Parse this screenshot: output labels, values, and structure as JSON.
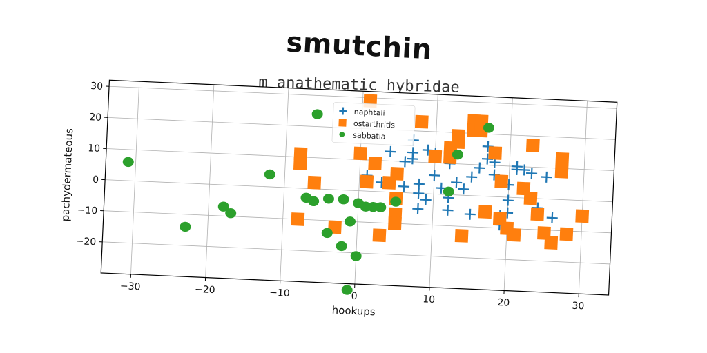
{
  "title": "smutchin",
  "subtitle": "m anathematic hybridae",
  "colors": {
    "naphtali": "#1f77b4",
    "ostarthritis": "#ff7f0e",
    "sabbatia": "#2ca02c",
    "grid": "#b0b0b0",
    "axes": "#000000"
  },
  "chart_data": {
    "type": "scatter",
    "title": "m anathematic hybridae",
    "xlabel": "hookups",
    "ylabel": "pachydermateous",
    "xlim": [
      -34,
      34
    ],
    "ylim": [
      -30,
      32
    ],
    "xticks": [
      -30,
      -20,
      -10,
      0,
      10,
      20,
      30
    ],
    "yticks": [
      -20,
      -10,
      0,
      10,
      20,
      30
    ],
    "grid": true,
    "legend_position": "top-center",
    "series": [
      {
        "name": "naphtali",
        "marker": "plus",
        "color": "#1f77b4",
        "points": [
          [
            1,
            5
          ],
          [
            3,
            3
          ],
          [
            4,
            13
          ],
          [
            6,
            10
          ],
          [
            6,
            2
          ],
          [
            7,
            17
          ],
          [
            7,
            13
          ],
          [
            7,
            11
          ],
          [
            8,
            3
          ],
          [
            8,
            0
          ],
          [
            8,
            -5
          ],
          [
            9,
            -2
          ],
          [
            9,
            14
          ],
          [
            10,
            13
          ],
          [
            10,
            6
          ],
          [
            11,
            2
          ],
          [
            12,
            -1
          ],
          [
            12,
            -5
          ],
          [
            12,
            10
          ],
          [
            13,
            4
          ],
          [
            14,
            2
          ],
          [
            15,
            6
          ],
          [
            15,
            -6
          ],
          [
            16,
            9
          ],
          [
            17,
            16
          ],
          [
            17,
            12
          ],
          [
            18,
            11
          ],
          [
            18,
            7
          ],
          [
            19,
            -6
          ],
          [
            19,
            -9
          ],
          [
            20,
            4
          ],
          [
            20,
            -1
          ],
          [
            20,
            -5
          ],
          [
            21,
            10
          ],
          [
            21,
            9
          ],
          [
            22,
            9
          ],
          [
            23,
            8
          ],
          [
            24,
            -3
          ],
          [
            25,
            7
          ],
          [
            26,
            -6
          ]
        ]
      },
      {
        "name": "ostarthritis",
        "marker": "square",
        "color": "#ff7f0e",
        "points": [
          [
            -8,
            -10
          ],
          [
            -8,
            11
          ],
          [
            -8,
            8
          ],
          [
            -6,
            2
          ],
          [
            -3,
            -12
          ],
          [
            0,
            12
          ],
          [
            1,
            3
          ],
          [
            1,
            29
          ],
          [
            2,
            9
          ],
          [
            3,
            -14
          ],
          [
            4,
            3
          ],
          [
            5,
            6
          ],
          [
            5,
            -2
          ],
          [
            5,
            -7
          ],
          [
            5,
            -10
          ],
          [
            8,
            23
          ],
          [
            10,
            12
          ],
          [
            12,
            15
          ],
          [
            12,
            12
          ],
          [
            13,
            19
          ],
          [
            13,
            17
          ],
          [
            14,
            -13
          ],
          [
            15,
            24
          ],
          [
            15,
            21
          ],
          [
            16,
            21
          ],
          [
            16,
            24
          ],
          [
            17,
            -5
          ],
          [
            18,
            14
          ],
          [
            19,
            5
          ],
          [
            19,
            -7
          ],
          [
            20,
            -10
          ],
          [
            21,
            -12
          ],
          [
            22,
            3
          ],
          [
            23,
            17
          ],
          [
            23,
            0
          ],
          [
            24,
            -5
          ],
          [
            25,
            -11
          ],
          [
            26,
            -14
          ],
          [
            27,
            13
          ],
          [
            27,
            9
          ],
          [
            28,
            -11
          ],
          [
            30,
            -5
          ]
        ]
      },
      {
        "name": "sabbatia",
        "marker": "circle",
        "color": "#2ca02c",
        "points": [
          [
            -31,
            6
          ],
          [
            -23,
            -14
          ],
          [
            -18,
            -7
          ],
          [
            -17,
            -9
          ],
          [
            -12,
            4
          ],
          [
            -7,
            -3
          ],
          [
            -6,
            24
          ],
          [
            -6,
            -4
          ],
          [
            -4,
            -3
          ],
          [
            -4,
            -14
          ],
          [
            -2,
            -3
          ],
          [
            -2,
            -18
          ],
          [
            -1,
            -10
          ],
          [
            0,
            -4
          ],
          [
            0,
            -21
          ],
          [
            -1,
            -32
          ],
          [
            1,
            -5
          ],
          [
            2,
            -5
          ],
          [
            3,
            -5
          ],
          [
            5,
            -3
          ],
          [
            12,
            1
          ],
          [
            13,
            13
          ],
          [
            17,
            22
          ]
        ]
      }
    ]
  }
}
